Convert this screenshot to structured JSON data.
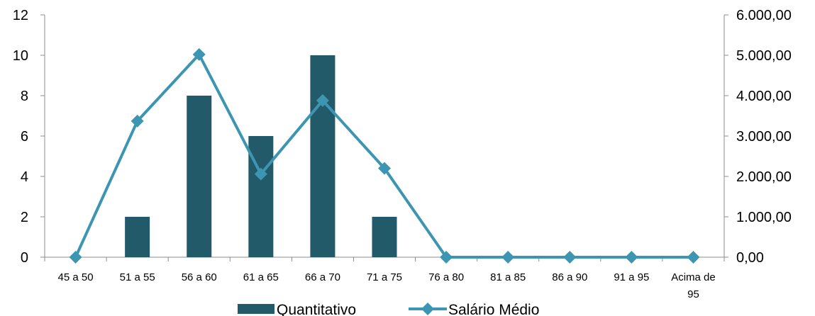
{
  "chart_data": {
    "type": "bar",
    "categories": [
      "45 a 50",
      "51 a 55",
      "56 a 60",
      "61 a 65",
      "66 a 70",
      "71 a 75",
      "76 a 80",
      "81 a 85",
      "86 a 90",
      "91 a 95",
      "Acima de 95"
    ],
    "series": [
      {
        "name": "Quantitativo",
        "type": "bar",
        "axis": "left",
        "color": "#235a6a",
        "values": [
          0,
          2,
          8,
          6,
          10,
          2,
          0,
          0,
          0,
          0,
          0
        ]
      },
      {
        "name": "Salário Médio",
        "type": "line",
        "axis": "right",
        "color": "#3c95b1",
        "marker": "diamond",
        "values": [
          0,
          3370,
          5020,
          2060,
          3880,
          2200,
          0,
          0,
          0,
          0,
          0
        ]
      }
    ],
    "y_left": {
      "min": 0,
      "max": 12,
      "ticks": [
        0,
        2,
        4,
        6,
        8,
        10,
        12
      ],
      "tick_labels": [
        "0",
        "2",
        "4",
        "6",
        "8",
        "10",
        "12"
      ]
    },
    "y_right": {
      "min": 0,
      "max": 6000,
      "ticks": [
        0,
        1000,
        2000,
        3000,
        4000,
        5000,
        6000
      ],
      "tick_labels": [
        "0,00",
        "1.000,00",
        "2.000,00",
        "3.000,00",
        "4.000,00",
        "5.000,00",
        "6.000,00"
      ]
    },
    "legend": {
      "position": "bottom"
    },
    "grid": false,
    "title": "",
    "xlabel": "",
    "ylabel": ""
  }
}
